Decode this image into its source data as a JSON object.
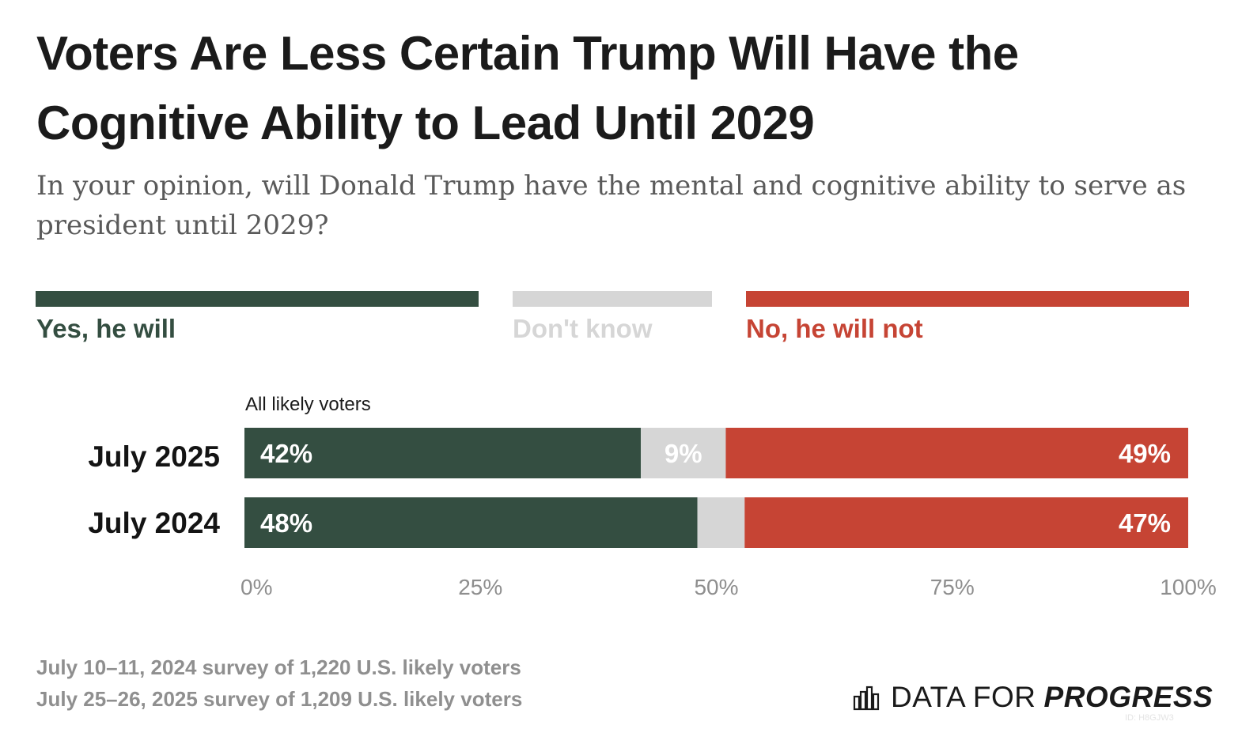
{
  "title": "Voters Are Less Certain Trump Will Have the Cognitive Ability to Lead Until 2029",
  "subtitle": "In your opinion, will Donald Trump have the mental and cognitive ability to serve as president until 2029?",
  "legend": [
    {
      "label": "Yes, he will",
      "color": "#344e41"
    },
    {
      "label": "Don't know",
      "color": "#d6d6d6"
    },
    {
      "label": "No, he will not",
      "color": "#c64434"
    }
  ],
  "group_label": "All likely voters",
  "footnotes": [
    "July 10–11, 2024 survey of 1,220 U.S. likely voters",
    "July 25–26, 2025 survey of 1,209 U.S. likely voters"
  ],
  "brand": {
    "light": "DATA FOR",
    "bold": "PROGRESS",
    "id": "ID: H8GJW3"
  },
  "chart_data": {
    "type": "bar",
    "orientation": "horizontal",
    "stacked": true,
    "categories": [
      "July 2025",
      "July 2024"
    ],
    "series": [
      {
        "name": "Yes, he will",
        "values": [
          42,
          48
        ],
        "labels": [
          "42%",
          "48%"
        ],
        "color": "#344e41"
      },
      {
        "name": "Don't know",
        "values": [
          9,
          5
        ],
        "labels": [
          "9%",
          ""
        ],
        "color": "#d6d6d6"
      },
      {
        "name": "No, he will not",
        "values": [
          49,
          47
        ],
        "labels": [
          "49%",
          "47%"
        ],
        "color": "#c64434"
      }
    ],
    "xlim": [
      0,
      100
    ],
    "xticks": [
      0,
      25,
      50,
      75,
      100
    ],
    "xtick_labels": [
      "0%",
      "25%",
      "50%",
      "75%",
      "100%"
    ],
    "legend_position": "top",
    "grid": false
  }
}
